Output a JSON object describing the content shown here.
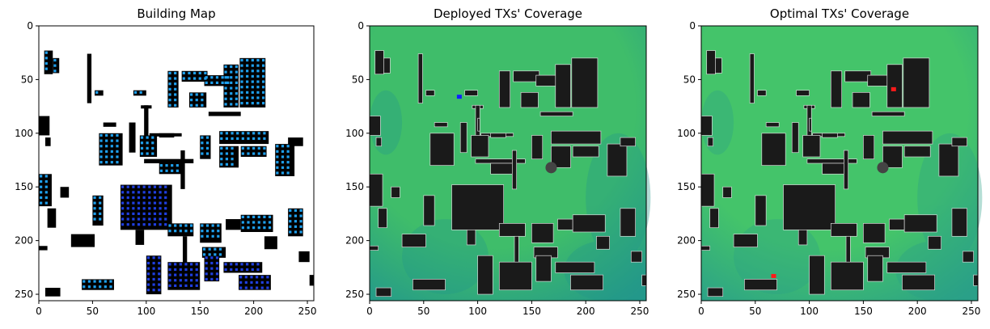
{
  "chart_data": [
    {
      "type": "heatmap",
      "title": "Building Map",
      "variant": "building-map",
      "xlim": [
        0,
        256
      ],
      "ylim": [
        256,
        0
      ],
      "x_ticks": [
        0,
        50,
        100,
        150,
        200,
        250
      ],
      "y_ticks": [
        0,
        50,
        100,
        150,
        200,
        250
      ],
      "grid": false,
      "colors": {
        "background": "#ffffff",
        "building": "#000000",
        "receiver_light": "#1ea0ee",
        "receiver_dark": "#1f3fe0"
      }
    },
    {
      "type": "heatmap",
      "title": "Deployed TXs' Coverage",
      "variant": "coverage",
      "xlim": [
        0,
        256
      ],
      "ylim": [
        256,
        0
      ],
      "x_ticks": [
        0,
        50,
        100,
        150,
        200,
        250
      ],
      "y_ticks": [
        0,
        50,
        100,
        150,
        200,
        250
      ],
      "grid": false,
      "transmitters": [
        {
          "x": 83,
          "y": 66,
          "color": "#1020ff"
        }
      ],
      "colors": {
        "coverage_high": "#3fbd6a",
        "coverage_low": "#23988a",
        "building": "#1a1a1a"
      }
    },
    {
      "type": "heatmap",
      "title": "Optimal TXs' Coverage",
      "variant": "coverage",
      "xlim": [
        0,
        256
      ],
      "ylim": [
        256,
        0
      ],
      "x_ticks": [
        0,
        50,
        100,
        150,
        200,
        250
      ],
      "y_ticks": [
        0,
        50,
        100,
        150,
        200,
        250
      ],
      "grid": false,
      "transmitters": [
        {
          "x": 178,
          "y": 59,
          "color": "#ff1a1a"
        },
        {
          "x": 67,
          "y": 233,
          "color": "#ff1a1a"
        }
      ],
      "colors": {
        "coverage_high": "#44c46a",
        "coverage_low": "#2aa088",
        "building": "#1a1a1a"
      }
    }
  ]
}
